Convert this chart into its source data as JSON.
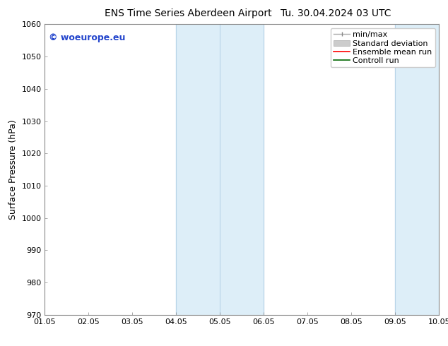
{
  "title": "ENS Time Series Aberdeen Airport",
  "title2": "Tu. 30.04.2024 03 UTC",
  "ylabel": "Surface Pressure (hPa)",
  "ylim": [
    970,
    1060
  ],
  "yticks": [
    970,
    980,
    990,
    1000,
    1010,
    1020,
    1030,
    1040,
    1050,
    1060
  ],
  "xtick_labels": [
    "01.05",
    "02.05",
    "03.05",
    "04.05",
    "05.05",
    "06.05",
    "07.05",
    "08.05",
    "09.05",
    "10.05"
  ],
  "xlim": [
    0,
    9
  ],
  "shaded_regions": [
    {
      "xstart": 3.0,
      "xend": 5.0,
      "color": "#ddeef8"
    },
    {
      "xstart": 8.0,
      "xend": 9.0,
      "color": "#ddeef8"
    }
  ],
  "vertical_lines_x": [
    3.0,
    4.0,
    5.0,
    8.0,
    9.0
  ],
  "vline_color": "#b8d4e8",
  "watermark_text": "© woeurope.eu",
  "watermark_color": "#2244cc",
  "bg_color": "#ffffff",
  "font_size": 9,
  "title_font_size": 10,
  "axis_font_size": 8
}
